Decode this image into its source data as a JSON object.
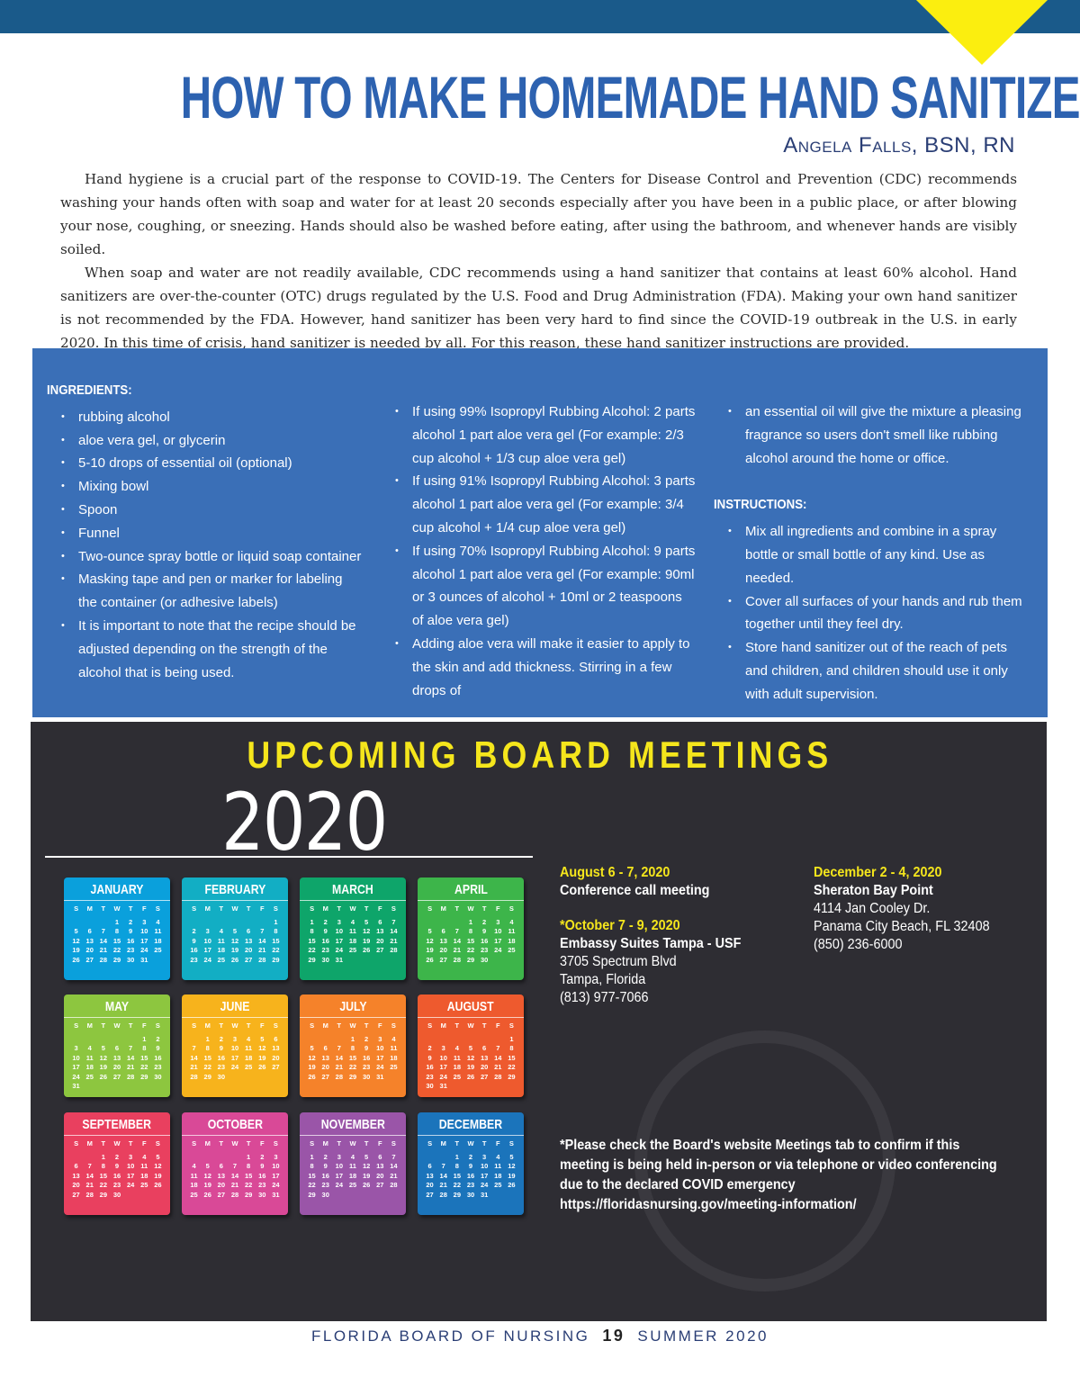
{
  "header": {
    "title": "HOW TO MAKE HOMEMADE HAND SANITIZER",
    "author": "Angela Falls, BSN, RN",
    "bar_color": "#1a5a8a",
    "accent_color": "#fbee0f"
  },
  "intro": [
    "Hand hygiene is a crucial part of the response to COVID-19. The Centers for Disease Control and Prevention (CDC) recommends washing your hands often with soap and water for at least 20 seconds especially after you have been in a public place, or after blowing your nose, coughing, or sneezing. Hands should also be washed before eating, after using the bathroom, and whenever hands are visibly soiled.",
    "When soap and water are not readily available, CDC recommends using a hand sanitizer that contains at least 60% alcohol. Hand sanitizers are over-the-counter (OTC) drugs regulated by the U.S. Food and Drug Administration (FDA). Making your own hand sanitizer is not recommended by the FDA. However, hand sanitizer has been very hard to find since the COVID-19 outbreak in the U.S. in early 2020. In this time of crisis, hand sanitizer is needed by all. For this reason, these hand sanitizer instructions are provided."
  ],
  "box": {
    "ingredients_label": "INGREDIENTS:",
    "ingredients": [
      "rubbing alcohol",
      "aloe vera gel, or glycerin",
      "5-10 drops of essential oil (optional)",
      "Mixing bowl",
      "Spoon",
      "Funnel",
      "Two-ounce spray bottle or liquid soap container",
      "Masking tape and pen or marker for labeling the container (or adhesive labels)",
      "It is important to note that the recipe should be adjusted depending on the strength of the alcohol that is being used."
    ],
    "ratios": [
      "If using 99% Isopropyl Rubbing Alcohol: 2 parts alcohol 1 part aloe vera gel (For example: 2/3 cup alcohol + 1/3 cup aloe vera gel)",
      "If using 91% Isopropyl Rubbing Alcohol: 3 parts alcohol 1 part aloe vera gel (For example: 3/4 cup alcohol + 1/4 cup aloe vera gel)",
      "If using 70% Isopropyl Rubbing Alcohol: 9 parts alcohol 1 part aloe vera gel (For example: 90ml or 3 ounces of alcohol + 10ml or 2 teaspoons of aloe vera gel)",
      "Adding aloe vera will make it easier to apply to the skin and add thickness. Stirring in a few drops of"
    ],
    "continued": "an essential oil will give the mixture a pleasing fragrance so users don't smell like rubbing alcohol around the home or office.",
    "instructions_label": "INSTRUCTIONS:",
    "instructions": [
      "Mix all ingredients and combine in a spray bottle or small bottle of any kind. Use as needed.",
      "Cover all surfaces of your hands and rub them together until they feel dry.",
      "Store hand sanitizer out of the reach of pets and children, and children should use it only with adult supervision."
    ]
  },
  "meetings": {
    "heading": "UPCOMING BOARD MEETINGS",
    "year": "2020",
    "weekday_letters": [
      "S",
      "M",
      "T",
      "W",
      "T",
      "F",
      "S"
    ],
    "calendar": [
      {
        "month": "JANUARY",
        "color": "#0aa0dc",
        "first_weekday": 3,
        "days": 31
      },
      {
        "month": "FEBRUARY",
        "color": "#12aec4",
        "first_weekday": 6,
        "days": 29
      },
      {
        "month": "MARCH",
        "color": "#0ea56a",
        "first_weekday": 0,
        "days": 31
      },
      {
        "month": "APRIL",
        "color": "#3db54a",
        "first_weekday": 3,
        "days": 30
      },
      {
        "month": "MAY",
        "color": "#8dc63f",
        "first_weekday": 5,
        "days": 31
      },
      {
        "month": "JUNE",
        "color": "#f7b31c",
        "first_weekday": 1,
        "days": 30
      },
      {
        "month": "JULY",
        "color": "#f5822a",
        "first_weekday": 3,
        "days": 31
      },
      {
        "month": "AUGUST",
        "color": "#ee5a2e",
        "first_weekday": 6,
        "days": 31
      },
      {
        "month": "SEPTEMBER",
        "color": "#e9405f",
        "first_weekday": 2,
        "days": 30
      },
      {
        "month": "OCTOBER",
        "color": "#d94997",
        "first_weekday": 4,
        "days": 31
      },
      {
        "month": "NOVEMBER",
        "color": "#9a55a8",
        "first_weekday": 0,
        "days": 30
      },
      {
        "month": "DECEMBER",
        "color": "#1b74bb",
        "first_weekday": 2,
        "days": 31
      }
    ],
    "entries": [
      {
        "date": "August 6 - 7, 2020",
        "venue": "Conference call meeting",
        "lines": []
      },
      {
        "date": "*October 7 - 9, 2020",
        "venue": "Embassy Suites Tampa - USF",
        "lines": [
          "3705 Spectrum Blvd",
          "Tampa, Florida",
          "(813) 977-7066"
        ]
      },
      {
        "date": "December 2 - 4, 2020",
        "venue": "Sheraton Bay Point",
        "lines": [
          "4114 Jan Cooley Dr.",
          "Panama City Beach, FL 32408",
          "(850) 236-6000"
        ]
      }
    ],
    "note": [
      "*Please check the Board's website Meetings tab to confirm if this",
      "meeting is being held in-person or via telephone or video conferencing",
      "due to the declared COVID emergency",
      "https://floridasnursing.gov/meeting-information/"
    ],
    "seal_text": "BOARD of NURSING · FLORIDA"
  },
  "footer": {
    "left": "FLORIDA BOARD OF NURSING",
    "page": "19",
    "right": "SUMMER 2020"
  }
}
